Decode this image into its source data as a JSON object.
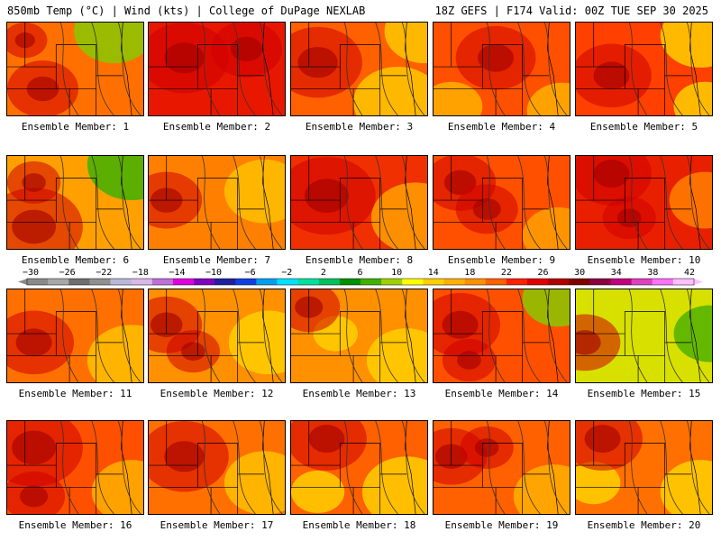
{
  "header": {
    "left": "850mb Temp (°C) | Wind (kts) | College of DuPage NEXLAB",
    "right": "18Z GEFS | F174 Valid: 00Z TUE SEP 30 2025"
  },
  "colorbar": {
    "labels": [
      "−30",
      "−26",
      "−22",
      "−18",
      "−14",
      "−10",
      "−6",
      "−2",
      "2",
      "6",
      "10",
      "14",
      "18",
      "22",
      "26",
      "30",
      "34",
      "38",
      "42"
    ],
    "values": [
      -30,
      -26,
      -22,
      -18,
      -14,
      -10,
      -6,
      -2,
      2,
      6,
      10,
      14,
      18,
      22,
      26,
      30,
      34,
      38,
      42
    ],
    "colors": [
      "#8a8a8a",
      "#a8a8a8",
      "#6e6e6e",
      "#909090",
      "#b8b8d8",
      "#d8b8e8",
      "#c070d8",
      "#e000e0",
      "#8000c0",
      "#2020a0",
      "#1040e0",
      "#00a0f0",
      "#00e0ff",
      "#00e0a0",
      "#00c060",
      "#009000",
      "#40b000",
      "#a0d000",
      "#ffff00",
      "#ffd000",
      "#ffb000",
      "#ff9000",
      "#ff6000",
      "#ff2000",
      "#e00000",
      "#b00000",
      "#800000",
      "#8b0040",
      "#c00080",
      "#e040c0",
      "#ff70ff",
      "#ffc0ff"
    ]
  },
  "panels": [
    {
      "label": "Ensemble Member: 1",
      "base": "#ff7000",
      "warm": [
        [
          40,
          75,
          40
        ],
        [
          20,
          20,
          25
        ]
      ],
      "cool": [
        [
          120,
          10,
          45
        ]
      ],
      "coolColor": "#88c800"
    },
    {
      "label": "Ensemble Member: 2",
      "base": "#e81800",
      "warm": [
        [
          40,
          40,
          50
        ],
        [
          110,
          30,
          40
        ]
      ],
      "cool": [],
      "coolColor": "#ffb000"
    },
    {
      "label": "Ensemble Member: 3",
      "base": "#ff6000",
      "warm": [
        [
          30,
          45,
          50
        ]
      ],
      "cool": [
        [
          150,
          10,
          45
        ],
        [
          120,
          90,
          50
        ]
      ],
      "coolColor": "#ffc800"
    },
    {
      "label": "Ensemble Member: 4",
      "base": "#ff5000",
      "warm": [
        [
          70,
          40,
          45
        ]
      ],
      "cool": [
        [
          20,
          95,
          35
        ],
        [
          145,
          100,
          40
        ]
      ],
      "coolColor": "#ffb000"
    },
    {
      "label": "Ensemble Member: 5",
      "base": "#ff4000",
      "warm": [
        [
          40,
          60,
          45
        ]
      ],
      "cool": [
        [
          140,
          15,
          45
        ],
        [
          145,
          95,
          35
        ]
      ],
      "coolColor": "#ffd000"
    },
    {
      "label": "Ensemble Member: 6",
      "base": "#ffa000",
      "warm": [
        [
          30,
          80,
          55
        ],
        [
          30,
          30,
          30
        ]
      ],
      "cool": [
        [
          140,
          10,
          50
        ]
      ],
      "coolColor": "#40b000"
    },
    {
      "label": "Ensemble Member: 7",
      "base": "#ff8000",
      "warm": [
        [
          20,
          50,
          40
        ]
      ],
      "cool": [
        [
          130,
          40,
          45
        ]
      ],
      "coolColor": "#ffc000"
    },
    {
      "label": "Ensemble Member: 8",
      "base": "#f03000",
      "warm": [
        [
          40,
          45,
          55
        ]
      ],
      "cool": [
        [
          140,
          70,
          50
        ]
      ],
      "coolColor": "#ffa000"
    },
    {
      "label": "Ensemble Member: 9",
      "base": "#ff5000",
      "warm": [
        [
          30,
          30,
          40
        ],
        [
          60,
          60,
          35
        ]
      ],
      "cool": [
        [
          140,
          90,
          40
        ]
      ],
      "coolColor": "#ffa000"
    },
    {
      "label": "Ensemble Member: 10",
      "base": "#e82000",
      "warm": [
        [
          40,
          20,
          45
        ],
        [
          60,
          70,
          30
        ]
      ],
      "cool": [
        [
          145,
          50,
          40
        ]
      ],
      "coolColor": "#ff8000"
    },
    {
      "label": "Ensemble Member: 11",
      "base": "#ff7000",
      "warm": [
        [
          30,
          60,
          45
        ]
      ],
      "cool": [
        [
          140,
          80,
          50
        ]
      ],
      "coolColor": "#ffc000"
    },
    {
      "label": "Ensemble Member: 12",
      "base": "#ff9000",
      "warm": [
        [
          20,
          40,
          40
        ],
        [
          50,
          70,
          30
        ]
      ],
      "cool": [
        [
          135,
          60,
          45
        ]
      ],
      "coolColor": "#ffd000"
    },
    {
      "label": "Ensemble Member: 13",
      "base": "#ff9000",
      "warm": [
        [
          20,
          20,
          35
        ]
      ],
      "cool": [
        [
          50,
          50,
          25
        ],
        [
          130,
          80,
          45
        ]
      ],
      "coolColor": "#ffd000"
    },
    {
      "label": "Ensemble Member: 14",
      "base": "#ff5000",
      "warm": [
        [
          30,
          40,
          45
        ],
        [
          40,
          80,
          30
        ]
      ],
      "cool": [
        [
          140,
          10,
          40
        ]
      ],
      "coolColor": "#88c800"
    },
    {
      "label": "Ensemble Member: 15",
      "base": "#d8e000",
      "warm": [
        [
          10,
          60,
          40
        ]
      ],
      "cool": [
        [
          150,
          50,
          40
        ]
      ],
      "coolColor": "#50b000"
    },
    {
      "label": "Ensemble Member: 16",
      "base": "#ff5000",
      "warm": [
        [
          30,
          30,
          55
        ],
        [
          30,
          85,
          35
        ]
      ],
      "cool": [
        [
          140,
          80,
          45
        ]
      ],
      "coolColor": "#ffb000"
    },
    {
      "label": "Ensemble Member: 17",
      "base": "#ff7000",
      "warm": [
        [
          40,
          40,
          50
        ]
      ],
      "cool": [
        [
          130,
          70,
          45
        ]
      ],
      "coolColor": "#ffc000"
    },
    {
      "label": "Ensemble Member: 18",
      "base": "#ff6000",
      "warm": [
        [
          40,
          20,
          45
        ]
      ],
      "cool": [
        [
          30,
          80,
          30
        ],
        [
          130,
          80,
          50
        ]
      ],
      "coolColor": "#ffd000"
    },
    {
      "label": "Ensemble Member: 19",
      "base": "#ff6000",
      "warm": [
        [
          20,
          40,
          40
        ],
        [
          60,
          30,
          30
        ]
      ],
      "cool": [
        [
          135,
          85,
          45
        ]
      ],
      "coolColor": "#ffb000"
    },
    {
      "label": "Ensemble Member: 20",
      "base": "#ff7000",
      "warm": [
        [
          30,
          20,
          45
        ]
      ],
      "cool": [
        [
          20,
          70,
          30
        ],
        [
          140,
          80,
          45
        ]
      ],
      "coolColor": "#ffd000"
    }
  ]
}
